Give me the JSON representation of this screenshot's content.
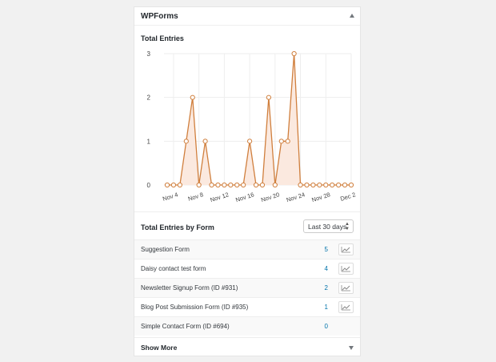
{
  "widget": {
    "title": "WPForms"
  },
  "chart_data": {
    "type": "area",
    "title": "Total Entries",
    "xlabel": "",
    "ylabel": "",
    "ylim": [
      0,
      3
    ],
    "yticks": [
      "0",
      "1",
      "2",
      "3"
    ],
    "xticks": [
      "Nov 4",
      "Nov 8",
      "Nov 12",
      "Nov 16",
      "Nov 20",
      "Nov 24",
      "Nov 28",
      "Dec 2"
    ],
    "x": [
      "Nov 3",
      "Nov 4",
      "Nov 5",
      "Nov 6",
      "Nov 7",
      "Nov 8",
      "Nov 9",
      "Nov 10",
      "Nov 11",
      "Nov 12",
      "Nov 13",
      "Nov 14",
      "Nov 15",
      "Nov 16",
      "Nov 17",
      "Nov 18",
      "Nov 19",
      "Nov 20",
      "Nov 21",
      "Nov 22",
      "Nov 23",
      "Nov 24",
      "Nov 25",
      "Nov 26",
      "Nov 27",
      "Nov 28",
      "Nov 29",
      "Nov 30",
      "Dec 1",
      "Dec 2"
    ],
    "values": [
      0,
      0,
      0,
      1,
      2,
      0,
      1,
      0,
      0,
      0,
      0,
      0,
      0,
      1,
      0,
      0,
      2,
      0,
      1,
      1,
      3,
      0,
      0,
      0,
      0,
      0,
      0,
      0,
      0,
      0
    ],
    "grid": true,
    "colors": {
      "line": "#d07f3d",
      "fill": "#fbe9df",
      "grid": "#eeeeee"
    }
  },
  "by_form": {
    "title": "Total Entries by Form",
    "range_select": "Last 30 days",
    "rows": [
      {
        "name": "Suggestion Form",
        "count": "5",
        "has_chart": true
      },
      {
        "name": "Daisy contact test form",
        "count": "4",
        "has_chart": true
      },
      {
        "name": "Newsletter Signup Form (ID #931)",
        "count": "2",
        "has_chart": true
      },
      {
        "name": "Blog Post Submission Form (ID #935)",
        "count": "1",
        "has_chart": true
      },
      {
        "name": "Simple Contact Form (ID #694)",
        "count": "0",
        "has_chart": false
      }
    ],
    "show_more": "Show More"
  },
  "icons": {
    "collapse": "triangle-up-icon",
    "chart": "line-chart-icon",
    "expand": "triangle-down-icon"
  }
}
